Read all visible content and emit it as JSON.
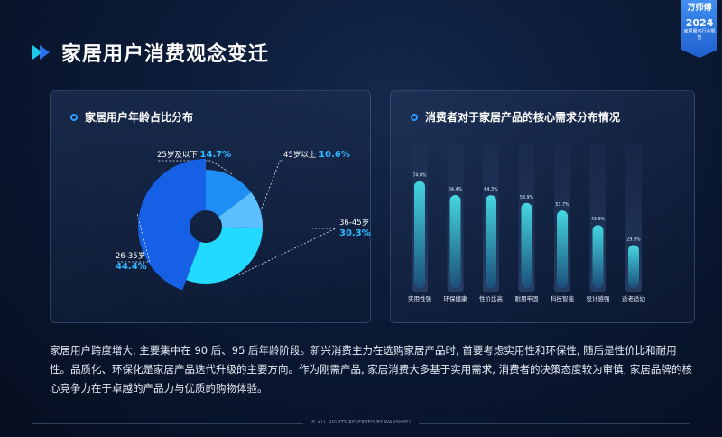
{
  "badge": {
    "brand": "万师傅",
    "year": "2024",
    "subtitle": "家居服务行业报告"
  },
  "page_title": "家居用户消费观念变迁",
  "description": "家居用户跨度增大, 主要集中在 90 后、95 后年龄阶段。新兴消费主力在选购家居产品时, 首要考虑实用性和环保性, 随后是性价比和耐用性。品质化、环保化是家居产品迭代升级的主要方向。作为刚需产品, 家居消费大多基于实用需求, 消费者的决策态度较为审慎, 家居品牌的核心竞争力在于卓越的产品力与优质的购物体验。",
  "footer": "© ALL RIGHTS RESERVED BY WANSHIFU",
  "colors": {
    "accent": "#2f9bff",
    "bar_top": "#45d6e0",
    "bar_bottom": "#1b4f7a"
  },
  "chart_data": [
    {
      "type": "pie",
      "title": "家居用户年龄占比分布",
      "variant": "donut",
      "slices": [
        {
          "label": "25岁及以下",
          "value": 14.7,
          "value_text": "14.7%",
          "color": "#1e8ef5"
        },
        {
          "label": "45岁以上",
          "value": 10.6,
          "value_text": "10.6%",
          "color": "#5cc0ff"
        },
        {
          "label": "36-45岁",
          "value": 30.3,
          "value_text": "30.3%",
          "color": "#22d9ff"
        },
        {
          "label": "26-35岁",
          "value": 44.4,
          "value_text": "44.4%",
          "color": "#1660e6"
        }
      ]
    },
    {
      "type": "bar",
      "title": "消费者对于家居产品的核心需求分布情况",
      "categories": [
        "实用性强",
        "环保健康",
        "性价比高",
        "耐用牢固",
        "科技智能",
        "设计感强",
        "适老适幼"
      ],
      "values": [
        74.0,
        64.4,
        64.3,
        58.9,
        53.7,
        43.6,
        29.8
      ],
      "value_labels": [
        "74.0%",
        "64.4%",
        "64.3%",
        "58.9%",
        "53.7%",
        "43.6%",
        "29.8%"
      ],
      "ylim": [
        0,
        100
      ],
      "grid": false
    }
  ]
}
